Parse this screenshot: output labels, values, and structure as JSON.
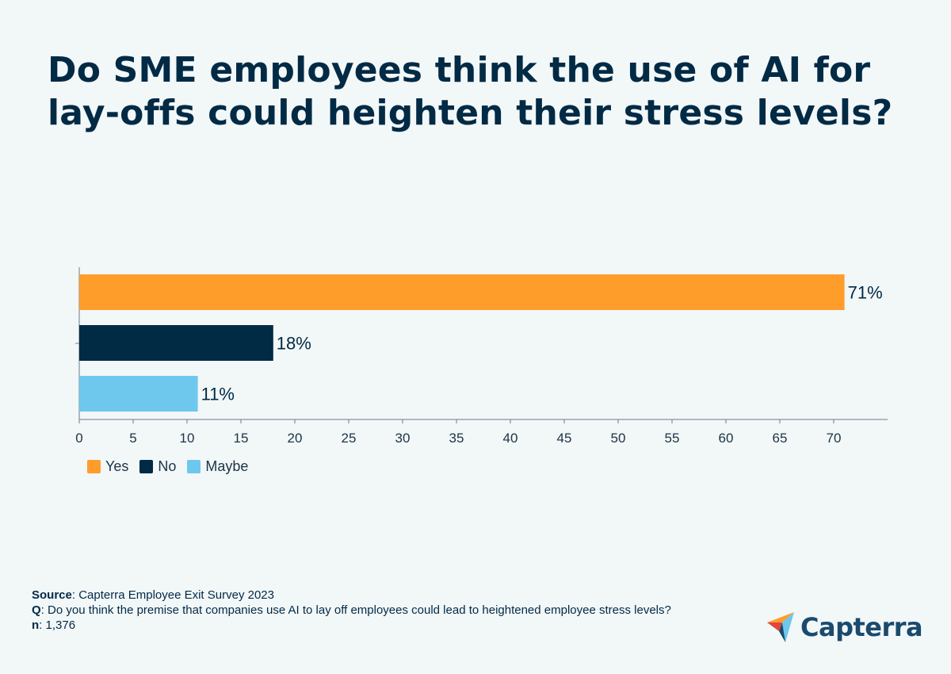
{
  "title": "Do SME employees think the use of AI for lay-offs could heighten their stress levels?",
  "chart_data": {
    "type": "bar",
    "orientation": "horizontal",
    "categories": [
      "Yes",
      "No",
      "Maybe"
    ],
    "values": [
      71,
      18,
      11
    ],
    "labels": [
      "71%",
      "18%",
      "11%"
    ],
    "colors": [
      "#ff9d2b",
      "#012a45",
      "#6ec8ee"
    ],
    "xlim": [
      0,
      75
    ],
    "xticks": [
      0,
      5,
      10,
      15,
      20,
      25,
      30,
      35,
      40,
      45,
      50,
      55,
      60,
      65,
      70
    ],
    "xlabel": "",
    "ylabel": "",
    "legend_position": "bottom-left"
  },
  "legend": [
    {
      "label": "Yes",
      "color": "#ff9d2b"
    },
    {
      "label": "No",
      "color": "#012a45"
    },
    {
      "label": "Maybe",
      "color": "#6ec8ee"
    }
  ],
  "footer": {
    "source_label": "Source",
    "source_text": ": Capterra Employee Exit Survey 2023",
    "q_label": "Q",
    "q_text": ": Do you think the premise that companies use AI to lay off employees could lead to heightened employee stress levels?",
    "n_label": "n",
    "n_text": ": 1,376"
  },
  "logo": {
    "text": "Capterra"
  }
}
